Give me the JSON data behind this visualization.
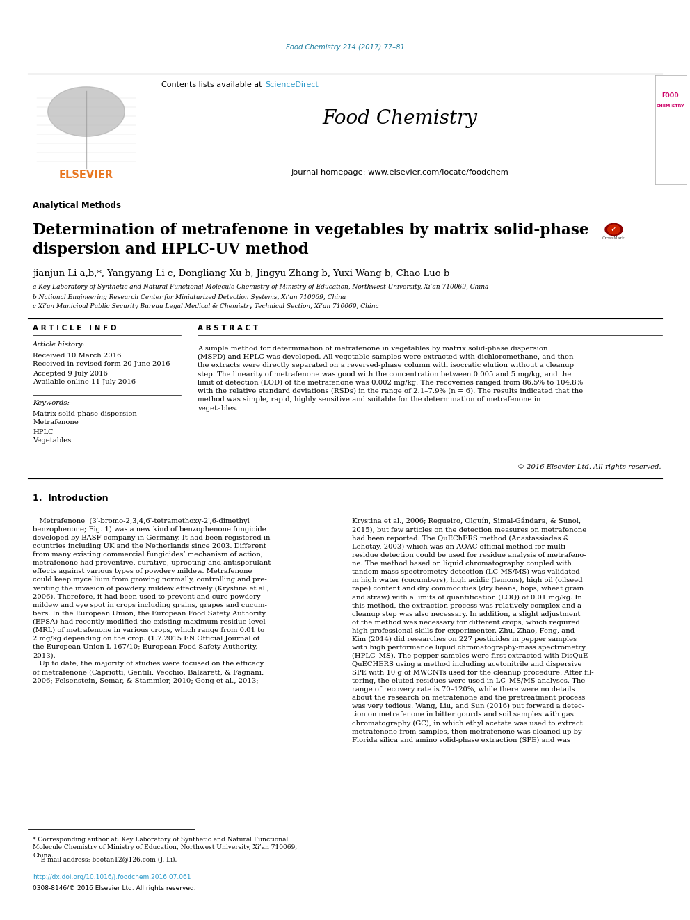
{
  "journal_ref": "Food Chemistry 214 (2017) 77–81",
  "journal_ref_color": "#2080a0",
  "sciencedirect_color": "#2898c8",
  "elsevier_color": "#e87722",
  "header_bg": "#e8e8e8",
  "black_bar_color": "#111111",
  "section_label": "Analytical Methods",
  "paper_title": "Determination of metrafenone in vegetables by matrix solid-phase\ndispersion and HPLC-UV method",
  "authors": "jianjun Li a,b,*, Yangyang Li c, Dongliang Xu b, Jingyu Zhang b, Yuxi Wang b, Chao Luo b",
  "affil_a": "a Key Laboratory of Synthetic and Natural Functional Molecule Chemistry of Ministry of Education, Northwest University, Xi’an 710069, China",
  "affil_b": "b National Engineering Research Center for Miniaturized Detection Systems, Xi’an 710069, China",
  "affil_c": "c Xi’an Municipal Public Security Bureau Legal Medical & Chemistry Technical Section, Xi’an 710069, China",
  "article_info_title": "A R T I C L E   I N F O",
  "abstract_title": "A B S T R A C T",
  "article_history_title": "Article history:",
  "received": "Received 10 March 2016",
  "received_revised": "Received in revised form 20 June 2016",
  "accepted": "Accepted 9 July 2016",
  "available": "Available online 11 July 2016",
  "keywords_title": "Keywords:",
  "keywords": [
    "Matrix solid-phase dispersion",
    "Metrafenone",
    "HPLC",
    "Vegetables"
  ],
  "abstract_text": "A simple method for determination of metrafenone in vegetables by matrix solid-phase dispersion\n(MSPD) and HPLC was developed. All vegetable samples were extracted with dichloromethane, and then\nthe extracts were directly separated on a reversed-phase column with isocratic elution without a cleanup\nstep. The linearity of metrafenone was good with the concentration between 0.005 and 5 mg/kg, and the\nlimit of detection (LOD) of the metrafenone was 0.002 mg/kg. The recoveries ranged from 86.5% to 104.8%\nwith the relative standard deviations (RSDs) in the range of 2.1–7.9% (n = 6). The results indicated that the\nmethod was simple, rapid, highly sensitive and suitable for the determination of metrafenone in\nvegetables.",
  "copyright_text": "© 2016 Elsevier Ltd. All rights reserved.",
  "intro_title": "1.  Introduction",
  "intro_col1": "   Metrafenone  (3′-bromo-2,3,4,6′-tetramethoxy-2′,6-dimethyl\nbenzophenone; Fig. 1) was a new kind of benzophenone fungicide\ndeveloped by BASF company in Germany. It had been registered in\ncountries including UK and the Netherlands since 2003. Different\nfrom many existing commercial fungicides’ mechanism of action,\nmetrafenone had preventive, curative, uprooting and antisporulant\neffects against various types of powdery mildew. Metrafenone\ncould keep mycellium from growing normally, controlling and pre-\nventing the invasion of powdery mildew effectively (Krystina et al.,\n2006). Therefore, it had been used to prevent and cure powdery\nmildew and eye spot in crops including grains, grapes and cucum-\nbers. In the European Union, the European Food Safety Authority\n(EFSA) had recently modified the existing maximum residue level\n(MRL) of metrafenone in various crops, which range from 0.01 to\n2 mg/kg depending on the crop. (1.7.2015 EN Official Journal of\nthe European Union L 167/10; European Food Safety Authority,\n2013).\n   Up to date, the majority of studies were focused on the efficacy\nof metrafenone (Capriotti, Gentili, Vecchio, Balzarett, & Fagnani,\n2006; Felsenstein, Semar, & Stammler, 2010; Gong et al., 2013;",
  "intro_col2": "Krystina et al., 2006; Regueiro, Olguín, Simal-Gándara, & Sunol,\n2015), but few articles on the detection measures on metrafenone\nhad been reported. The QuEChERS method (Anastassiades &\nLehotay, 2003) which was an AOAC official method for multi-\nresidue detection could be used for residue analysis of metrafeno-\nne. The method based on liquid chromatography coupled with\ntandem mass spectrometry detection (LC-MS/MS) was validated\nin high water (cucumbers), high acidic (lemons), high oil (oilseed\nrape) content and dry commodities (dry beans, hops, wheat grain\nand straw) with a limits of quantification (LOQ) of 0.01 mg/kg. In\nthis method, the extraction process was relatively complex and a\ncleanup step was also necessary. In addition, a slight adjustment\nof the method was necessary for different crops, which required\nhigh professional skills for experimenter. Zhu, Zhao, Feng, and\nKim (2014) did researches on 227 pesticides in pepper samples\nwith high performance liquid chromatography-mass spectrometry\n(HPLC–MS). The pepper samples were first extracted with DisQuE\nQuECHERS using a method including acetonitrile and dispersive\nSPE with 10 g of MWCNTs used for the cleanup procedure. After fil-\ntering, the eluted residues were used in LC–MS/MS analyses. The\nrange of recovery rate is 70–120%, while there were no details\nabout the research on metrafenone and the pretreatment process\nwas very tedious. Wang, Liu, and Sun (2016) put forward a detec-\ntion on metrafenone in bitter gourds and soil samples with gas\nchromatography (GC), in which ethyl acetate was used to extract\nmetrafenone from samples, then metrafenone was cleaned up by\nFlorida silica and amino solid-phase extraction (SPE) and was",
  "footnote_star": "* Corresponding author at: Key Laboratory of Synthetic and Natural Functional\nMolecule Chemistry of Ministry of Education, Northwest University, Xi’an 710069,\nChina.",
  "footnote_email": "    E-mail address: bootan12@126.com (J. Li).",
  "footnote_email_link": "bootan12@126.com",
  "doi_text": "http://dx.doi.org/10.1016/j.foodchem.2016.07.061",
  "issn_text": "0308-8146/© 2016 Elsevier Ltd. All rights reserved."
}
